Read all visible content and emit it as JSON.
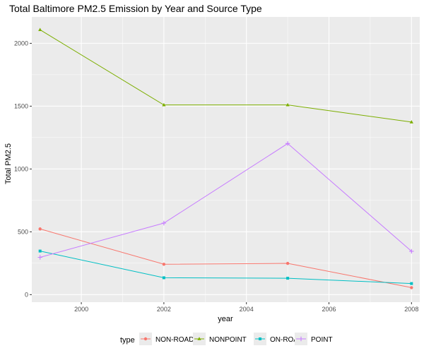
{
  "chart_data": {
    "type": "line",
    "title": "Total Baltimore PM2.5 Emission by Year and Source Type",
    "xlabel": "year",
    "ylabel": "Total PM2.5",
    "xlim": [
      1998.8,
      2008.2
    ],
    "ylim": [
      -60,
      2210
    ],
    "x_ticks": [
      2000,
      2002,
      2004,
      2006,
      2008
    ],
    "y_ticks": [
      0,
      500,
      1000,
      1500,
      2000
    ],
    "x": [
      1999,
      2002,
      2005,
      2008
    ],
    "legend_title": "type",
    "legend_position": "bottom",
    "grid": true,
    "background": "#ebebeb",
    "series": [
      {
        "name": "NON-ROAD",
        "color": "#f8766d",
        "marker": "circle",
        "values": [
          522.9,
          241.8,
          248.9,
          55.8
        ]
      },
      {
        "name": "NONPOINT",
        "color": "#7cae00",
        "marker": "triangle",
        "values": [
          2107.6,
          1509.5,
          1509.5,
          1373.2
        ]
      },
      {
        "name": "ON-ROAD",
        "color": "#00bfc4",
        "marker": "square",
        "values": [
          346.8,
          134.3,
          130.4,
          88.3
        ]
      },
      {
        "name": "POINT",
        "color": "#c77cff",
        "marker": "plus",
        "values": [
          296.8,
          569.3,
          1202.5,
          344.98
        ]
      }
    ]
  }
}
